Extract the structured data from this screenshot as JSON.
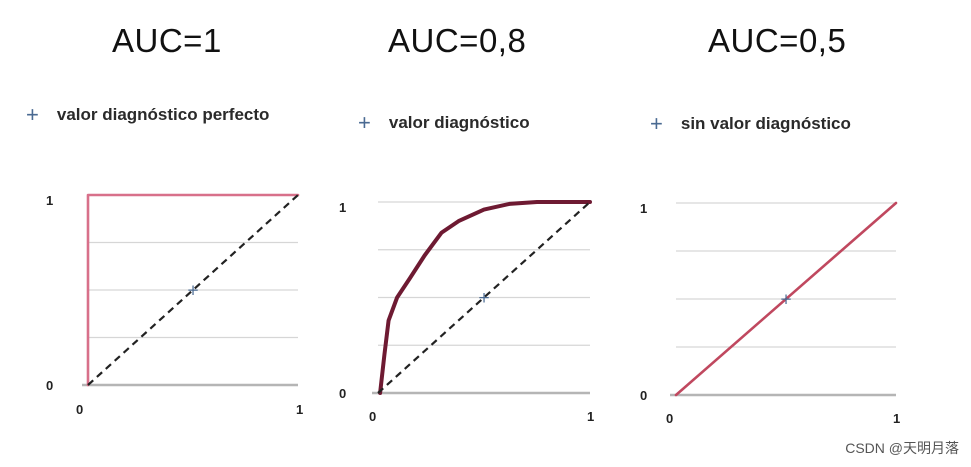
{
  "panels": [
    {
      "title": "AUC=1",
      "legend": "valor diagnóstico perfecto"
    },
    {
      "title": "AUC=0,8",
      "legend": "valor diagnóstico"
    },
    {
      "title": "AUC=0,5",
      "legend": "sin valor diagnóstico"
    }
  ],
  "legend_symbol": "+",
  "watermark": "CSDN @天明月落",
  "chart_data": [
    {
      "type": "line",
      "title": "AUC=1",
      "xlim": [
        0,
        1
      ],
      "ylim": [
        0,
        1
      ],
      "x_ticks": [
        "0",
        "1"
      ],
      "y_ticks": [
        "0",
        "1"
      ],
      "grid": true,
      "series": [
        {
          "style": "solid",
          "color": "#d8708a",
          "points": [
            [
              0,
              0
            ],
            [
              0,
              1
            ],
            [
              1,
              1
            ]
          ]
        },
        {
          "style": "dashed",
          "color": "#222222",
          "points": [
            [
              0,
              0
            ],
            [
              1,
              1
            ]
          ]
        }
      ],
      "marker": {
        "x": 0.5,
        "y": 0.5,
        "symbol": "+",
        "color": "#4a6a92"
      }
    },
    {
      "type": "line",
      "title": "AUC=0,8",
      "xlim": [
        0,
        1
      ],
      "ylim": [
        0,
        1
      ],
      "x_ticks": [
        "0",
        "1"
      ],
      "y_ticks": [
        "0",
        "1"
      ],
      "grid": true,
      "series": [
        {
          "style": "solid",
          "color": "#6e1a32",
          "points": [
            [
              0.01,
              0
            ],
            [
              0.03,
              0.2
            ],
            [
              0.05,
              0.38
            ],
            [
              0.09,
              0.5
            ],
            [
              0.15,
              0.6
            ],
            [
              0.22,
              0.72
            ],
            [
              0.3,
              0.84
            ],
            [
              0.38,
              0.9
            ],
            [
              0.5,
              0.96
            ],
            [
              0.62,
              0.99
            ],
            [
              0.75,
              1.0
            ],
            [
              0.88,
              1.0
            ],
            [
              1,
              1
            ]
          ]
        },
        {
          "style": "dashed",
          "color": "#222222",
          "points": [
            [
              0,
              0
            ],
            [
              1,
              1
            ]
          ]
        }
      ],
      "marker": {
        "x": 0.5,
        "y": 0.5,
        "symbol": "+",
        "color": "#4a6a92"
      }
    },
    {
      "type": "line",
      "title": "AUC=0,5",
      "xlim": [
        0,
        1
      ],
      "ylim": [
        0,
        1
      ],
      "x_ticks": [
        "0",
        "1"
      ],
      "y_ticks": [
        "0",
        "1"
      ],
      "grid": true,
      "series": [
        {
          "style": "solid",
          "color": "#c0485f",
          "points": [
            [
              0,
              0
            ],
            [
              1,
              1
            ]
          ]
        }
      ],
      "marker": {
        "x": 0.5,
        "y": 0.5,
        "symbol": "+",
        "color": "#4a6a92"
      }
    }
  ]
}
